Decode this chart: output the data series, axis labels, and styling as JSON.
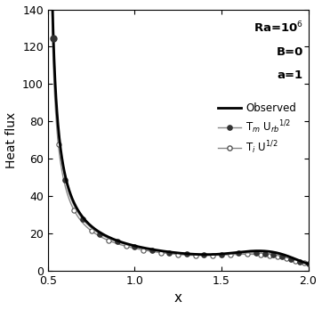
{
  "title": "",
  "xlabel": "x",
  "ylabel": "Heat flux",
  "xlim": [
    0.5,
    2.0
  ],
  "ylim": [
    0,
    140
  ],
  "xticks": [
    0.5,
    1.0,
    1.5,
    2.0
  ],
  "yticks": [
    0,
    20,
    40,
    60,
    80,
    100,
    120,
    140
  ],
  "vline_x": 0.5,
  "legend_observed": "Observed",
  "legend_tm": "T$_m$ U$_{rb}$$^{1/2}$",
  "legend_ti": "T$_i$ U$^{1/2}$",
  "background_color": "#ffffff"
}
